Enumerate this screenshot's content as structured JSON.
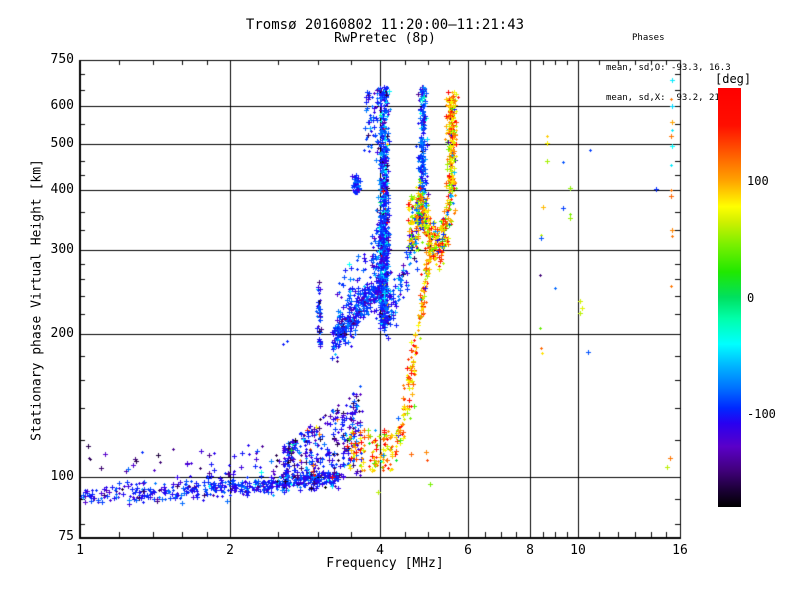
{
  "title": {
    "line1": "Tromsø 20160802 11:20:00–11:21:43",
    "line2": "RwPretec (8p)"
  },
  "stats": {
    "header": "Phases",
    "line_o": "mean, sd,O: -93.3, 16.3",
    "line_x": "mean, sd,X:  93.2, 21.8"
  },
  "axes": {
    "x": {
      "label": "Frequency [MHz]",
      "scale": "log",
      "min": 1,
      "max": 16,
      "major": [
        1,
        2,
        4,
        6,
        8,
        10,
        16
      ],
      "grid": [
        2,
        4,
        6,
        8,
        10
      ],
      "minor": [
        1.2,
        1.4,
        1.6,
        1.8,
        2.5,
        3,
        3.5,
        4.5,
        5,
        5.5,
        6.5,
        7,
        7.5,
        8.5,
        9,
        9.5,
        11,
        12,
        13,
        14,
        15
      ]
    },
    "y": {
      "label": "Stationary phase Virtual Height [km]",
      "scale": "log",
      "min": 75,
      "max": 750,
      "major": [
        75,
        100,
        200,
        300,
        400,
        500,
        600,
        750
      ],
      "grid": [
        100,
        200,
        300,
        400,
        500,
        600
      ],
      "minor": [
        80,
        90,
        120,
        140,
        160,
        180,
        220,
        240,
        260,
        280,
        330,
        360,
        430,
        460,
        550,
        650,
        700
      ]
    }
  },
  "colorbar": {
    "label": "[deg]",
    "min": -180,
    "max": 180,
    "ticks": [
      {
        "value": 100,
        "label": "100"
      },
      {
        "value": 0,
        "label": "0"
      },
      {
        "value": -100,
        "label": "-100"
      }
    ]
  },
  "chart_data": {
    "type": "scatter",
    "title": "Tromsø 20160802 11:20:00–11:21:43 / RwPretec (8p)",
    "xlabel": "Frequency [MHz]",
    "ylabel": "Stationary phase Virtual Height [km]",
    "xscale": "log",
    "yscale": "log",
    "xlim": [
      1,
      16
    ],
    "ylim": [
      75,
      750
    ],
    "grid": true,
    "color_variable": "phase [deg]",
    "color_range": [
      -180,
      180
    ],
    "colormap": {
      "stops": [
        [
          -180,
          "#000000"
        ],
        [
          -165,
          "#1c0038"
        ],
        [
          -148,
          "#42007e"
        ],
        [
          -128,
          "#5a00c8"
        ],
        [
          -108,
          "#2800f0"
        ],
        [
          -95,
          "#0028ff"
        ],
        [
          -78,
          "#0070ff"
        ],
        [
          -58,
          "#00b8ff"
        ],
        [
          -40,
          "#00ffff"
        ],
        [
          -18,
          "#00ffaa"
        ],
        [
          0,
          "#00e060"
        ],
        [
          22,
          "#20e800"
        ],
        [
          45,
          "#78f000"
        ],
        [
          65,
          "#d0f000"
        ],
        [
          78,
          "#ffff00"
        ],
        [
          100,
          "#ffa400"
        ],
        [
          122,
          "#ff6000"
        ],
        [
          148,
          "#ff0f00"
        ],
        [
          180,
          "#ff0000"
        ]
      ]
    },
    "clusters": [
      {
        "name": "e-region-band",
        "n": 500,
        "f": [
          1.0,
          3.3
        ],
        "hlerp": [
          92,
          100,
          2.2
        ],
        "ph": [
          -100,
          13
        ],
        "out": [
          [
            0.07,
            -150,
            13
          ],
          [
            0.02,
            -45,
            12
          ]
        ]
      },
      {
        "name": "e-band-spikes",
        "n": 65,
        "f": [
          1.0,
          3.25
        ],
        "h": [
          101,
          117
        ],
        "ph": [
          -110,
          18
        ],
        "out": [
          [
            0.3,
            -150,
            12
          ]
        ]
      },
      {
        "name": "diffuse-cloud",
        "n": 310,
        "f": [
          2.55,
          3.68
        ],
        "hwedge": [
          100,
          116,
          158
        ],
        "ph": [
          -105,
          22
        ],
        "out": [
          [
            0.13,
            -150,
            12
          ],
          [
            0.05,
            115,
            35
          ],
          [
            0.03,
            -40,
            10
          ]
        ]
      },
      {
        "name": "x-mode-low-patch",
        "n": 125,
        "f": [
          3.42,
          4.38
        ],
        "h": [
          103,
          126
        ],
        "ph": [
          100,
          28
        ],
        "out": [
          [
            0.08,
            152,
            10
          ],
          [
            0.1,
            45,
            12
          ],
          [
            0.07,
            -90,
            25
          ]
        ]
      },
      {
        "name": "mini-column",
        "n": 48,
        "fg": [
          3.02,
          0.015
        ],
        "h": [
          188,
          253
        ],
        "ph": [
          -100,
          17
        ],
        "out": [
          [
            0.05,
            -150,
            10
          ]
        ]
      },
      {
        "name": "o-diagonal-band",
        "n": 340,
        "f": [
          3.2,
          4.05
        ],
        "hlerp": [
          192,
          256,
          9
        ],
        "ph": [
          -95,
          16
        ],
        "out": [
          [
            0.06,
            -138,
            10
          ]
        ]
      },
      {
        "name": "diagonal-fringe",
        "n": 70,
        "f": [
          3.28,
          3.98
        ],
        "hlerp": [
          225,
          300,
          20
        ],
        "ph": [
          -95,
          18
        ],
        "out": [
          [
            0.08,
            -145,
            10
          ]
        ]
      },
      {
        "name": "o-main-column",
        "n": 620,
        "fg": [
          4.07,
          0.045
        ],
        "hlog": [
          205,
          660
        ],
        "ph": [
          -93,
          17
        ],
        "out": [
          [
            0.08,
            -45,
            16
          ],
          [
            0.04,
            -160,
            10
          ],
          [
            0.02,
            105,
            45
          ]
        ]
      },
      {
        "name": "o-main-column-base",
        "n": 260,
        "fg": [
          4.06,
          0.07
        ],
        "h": [
          208,
          365
        ],
        "ph": [
          -95,
          18
        ],
        "out": [
          [
            0.06,
            -45,
            15
          ],
          [
            0.03,
            -150,
            10
          ]
        ]
      },
      {
        "name": "column-left-fringe",
        "n": 48,
        "f": [
          3.72,
          3.98
        ],
        "h": [
          480,
          652
        ],
        "ph": [
          -95,
          17
        ],
        "out": [
          [
            0.06,
            -150,
            10
          ]
        ]
      },
      {
        "name": "blue-blob",
        "n": 38,
        "fg": [
          3.58,
          0.035
        ],
        "h": [
          394,
          432
        ],
        "ph": [
          -97,
          13
        ]
      },
      {
        "name": "o-second-column",
        "n": 230,
        "fg": [
          4.86,
          0.045
        ],
        "hlog": [
          330,
          660
        ],
        "ph": [
          -90,
          17
        ],
        "out": [
          [
            0.05,
            -45,
            14
          ],
          [
            0.03,
            -152,
            10
          ],
          [
            0.03,
            110,
            30
          ]
        ]
      },
      {
        "name": "x-main-column",
        "n": 200,
        "fg": [
          5.56,
          0.06
        ],
        "hlog": [
          400,
          630
        ],
        "ph": [
          95,
          25
        ],
        "out": [
          [
            0.1,
            153,
            12
          ],
          [
            0.08,
            45,
            13
          ],
          [
            0.06,
            -90,
            28
          ],
          [
            0.03,
            -148,
            10
          ]
        ]
      },
      {
        "name": "x-cusp-u",
        "n": 280,
        "path": [
          [
            4.8,
            395
          ],
          [
            4.92,
            345
          ],
          [
            5.08,
            310
          ],
          [
            5.25,
            305
          ],
          [
            5.42,
            330
          ],
          [
            5.55,
            380
          ]
        ],
        "jf": 0.05,
        "jh": 18,
        "ph": [
          90,
          30
        ],
        "out": [
          [
            0.12,
            150,
            14
          ],
          [
            0.1,
            42,
            14
          ],
          [
            0.09,
            -90,
            25
          ],
          [
            0.02,
            -150,
            8
          ]
        ]
      },
      {
        "name": "x-lower-trace",
        "n": 160,
        "path": [
          [
            4.32,
            118
          ],
          [
            4.5,
            142
          ],
          [
            4.66,
            175
          ],
          [
            4.82,
            222
          ],
          [
            4.95,
            268
          ],
          [
            5.05,
            305
          ]
        ],
        "jf": 0.035,
        "jh": 10,
        "ph": [
          95,
          26
        ],
        "out": [
          [
            0.1,
            150,
            12
          ],
          [
            0.08,
            45,
            12
          ],
          [
            0.05,
            -90,
            20
          ]
        ]
      },
      {
        "name": "o-lower-arm",
        "n": 110,
        "path": [
          [
            4.1,
            200
          ],
          [
            4.3,
            230
          ],
          [
            4.5,
            270
          ],
          [
            4.7,
            320
          ],
          [
            4.8,
            360
          ]
        ],
        "jf": 0.05,
        "jh": 12,
        "ph": [
          -92,
          18
        ],
        "out": [
          [
            0.05,
            -150,
            10
          ]
        ]
      },
      {
        "name": "cusp-left-mass",
        "n": 80,
        "f": [
          4.55,
          4.85
        ],
        "h": [
          300,
          390
        ],
        "ph": [
          85,
          35
        ],
        "out": [
          [
            0.1,
            45,
            15
          ],
          [
            0.08,
            -90,
            20
          ],
          [
            0.05,
            150,
            10
          ]
        ]
      },
      {
        "name": "x-top-sparse",
        "n": 24,
        "fg": [
          5.56,
          0.07
        ],
        "h": [
          558,
          645
        ],
        "ph": [
          105,
          30
        ],
        "out": [
          [
            0.12,
            158,
            8
          ]
        ]
      }
    ],
    "singles": [
      [
        2.56,
        190,
        -100
      ],
      [
        2.6,
        193,
        -95
      ],
      [
        3.02,
        257,
        -150
      ],
      [
        3.96,
        93,
        60
      ],
      [
        5.04,
        97,
        45
      ],
      [
        4.62,
        112,
        120
      ],
      [
        4.95,
        113,
        110
      ],
      [
        4.97,
        109,
        130
      ],
      [
        8.65,
        460,
        55
      ],
      [
        9.3,
        458,
        -85
      ],
      [
        9.64,
        404,
        50
      ],
      [
        14.3,
        402,
        -95
      ],
      [
        8.5,
        368,
        95
      ],
      [
        9.3,
        367,
        -90
      ],
      [
        9.64,
        356,
        45
      ],
      [
        9.64,
        349,
        52
      ],
      [
        8.4,
        323,
        60
      ],
      [
        8.4,
        318,
        -85
      ],
      [
        8.37,
        266,
        -150
      ],
      [
        8.96,
        250,
        -80
      ],
      [
        10.1,
        234,
        65
      ],
      [
        10.15,
        227,
        70
      ],
      [
        10.1,
        221,
        60
      ],
      [
        8.37,
        206,
        40
      ],
      [
        8.4,
        187,
        120
      ],
      [
        8.45,
        182,
        85
      ],
      [
        10.47,
        183,
        -85
      ],
      [
        10.55,
        485,
        -90
      ],
      [
        8.65,
        520,
        90
      ],
      [
        8.65,
        503,
        80
      ],
      [
        15.4,
        681,
        -45
      ],
      [
        15.38,
        621,
        115
      ],
      [
        15.4,
        600,
        -50
      ],
      [
        15.42,
        556,
        100
      ],
      [
        15.4,
        536,
        -45
      ],
      [
        15.38,
        520,
        115
      ],
      [
        15.4,
        495,
        -40
      ],
      [
        15.38,
        452,
        -45
      ],
      [
        15.35,
        400,
        115
      ],
      [
        15.38,
        389,
        120
      ],
      [
        15.4,
        330,
        110
      ],
      [
        15.4,
        320,
        115
      ],
      [
        15.38,
        252,
        115
      ],
      [
        15.3,
        110,
        115
      ],
      [
        15.1,
        105,
        60
      ]
    ]
  }
}
